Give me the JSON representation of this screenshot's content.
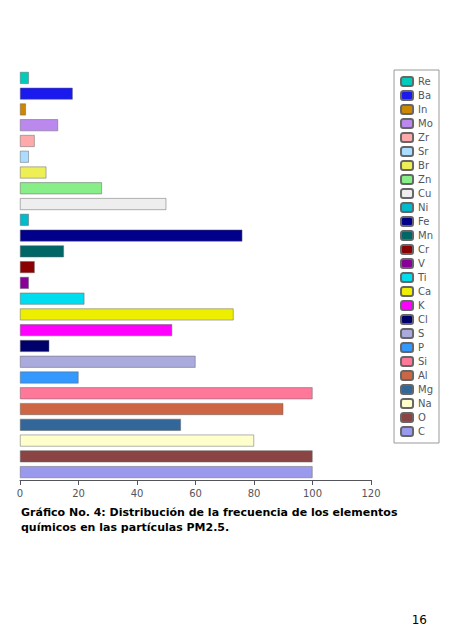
{
  "chart_data": {
    "type": "bar",
    "orientation": "horizontal",
    "title": "Gráfico No. 4: Distribución de la frecuencia de los elementos químicos en las partículas PM2.5.",
    "annotations": [
      "16"
    ],
    "categories": [
      "Re",
      "Ba",
      "In",
      "Mo",
      "Zr",
      "Sr",
      "Br",
      "Zn",
      "Cu",
      "Ni",
      "Fe",
      "Mn",
      "Cr",
      "V",
      "Ti",
      "Ca",
      "K",
      "Cl",
      "S",
      "P",
      "Si",
      "Al",
      "Mg",
      "Na",
      "O",
      "C"
    ],
    "values": [
      3,
      18,
      2,
      13,
      5,
      3,
      9,
      28,
      50,
      3,
      76,
      15,
      5,
      3,
      22,
      73,
      52,
      10,
      60,
      20,
      100,
      90,
      55,
      80,
      100,
      100
    ],
    "colors": [
      "#00ccbb",
      "#1a1aee",
      "#cc8800",
      "#bb88ee",
      "#ffaaaa",
      "#aaddff",
      "#eeee55",
      "#88ee88",
      "#eeeeee",
      "#00bbcc",
      "#00008b",
      "#006666",
      "#8b0000",
      "#880099",
      "#00ddee",
      "#eeee00",
      "#ff00ff",
      "#00006b",
      "#aaaadd",
      "#3399ff",
      "#ff7799",
      "#cc6644",
      "#336699",
      "#ffffcc",
      "#8b4444",
      "#9999ee"
    ],
    "xlim": [
      0,
      120
    ],
    "xticks": [
      0,
      20,
      40,
      60,
      80,
      100,
      120
    ],
    "grid": false,
    "legend": "right",
    "tick_labels": "x"
  }
}
